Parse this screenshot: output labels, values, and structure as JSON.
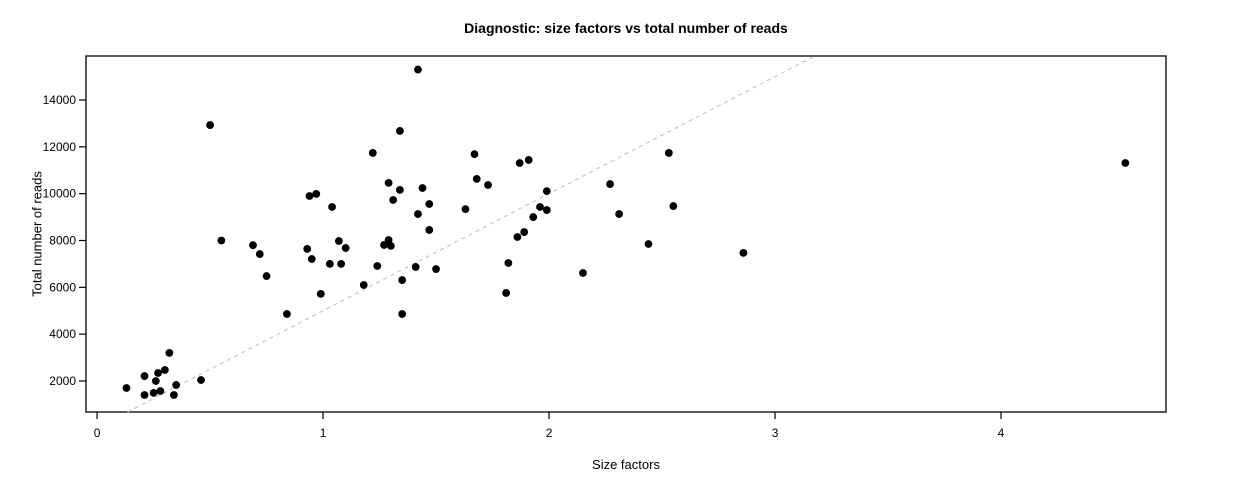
{
  "chart_data": {
    "type": "scatter",
    "title": "Diagnostic: size factors vs total number of reads",
    "xlabel": "Size factors",
    "ylabel": "Total number of reads",
    "x_ticks": [
      0,
      1,
      2,
      3,
      4
    ],
    "y_ticks": [
      2000,
      4000,
      6000,
      8000,
      10000,
      12000,
      14000
    ],
    "xlim": [
      -0.049,
      4.73
    ],
    "ylim": [
      675,
      15880
    ],
    "grid": false,
    "legend": null,
    "point_color": "#000000",
    "axis_color": "#000000",
    "trend_line": {
      "style": "dashed",
      "color": "#c6c6c6",
      "slope": 5000,
      "intercept": 0
    },
    "points": [
      [
        0.13,
        1700
      ],
      [
        0.21,
        2210
      ],
      [
        0.21,
        1400
      ],
      [
        0.25,
        1490
      ],
      [
        0.26,
        2000
      ],
      [
        0.27,
        2340
      ],
      [
        0.28,
        1570
      ],
      [
        0.3,
        2470
      ],
      [
        0.32,
        3200
      ],
      [
        0.34,
        1400
      ],
      [
        0.35,
        1830
      ],
      [
        0.46,
        2040
      ],
      [
        0.5,
        12930
      ],
      [
        0.55,
        8000
      ],
      [
        0.69,
        7800
      ],
      [
        0.72,
        7420
      ],
      [
        0.75,
        6480
      ],
      [
        0.84,
        4860
      ],
      [
        0.93,
        7640
      ],
      [
        0.94,
        9900
      ],
      [
        0.95,
        7210
      ],
      [
        0.97,
        9990
      ],
      [
        0.99,
        5720
      ],
      [
        1.03,
        7000
      ],
      [
        1.04,
        9430
      ],
      [
        1.07,
        7980
      ],
      [
        1.08,
        7000
      ],
      [
        1.1,
        7680
      ],
      [
        1.18,
        6100
      ],
      [
        1.22,
        11740
      ],
      [
        1.24,
        6910
      ],
      [
        1.27,
        7810
      ],
      [
        1.29,
        8020
      ],
      [
        1.29,
        10460
      ],
      [
        1.3,
        7770
      ],
      [
        1.31,
        9730
      ],
      [
        1.34,
        12680
      ],
      [
        1.34,
        10160
      ],
      [
        1.35,
        6310
      ],
      [
        1.35,
        4860
      ],
      [
        1.41,
        6870
      ],
      [
        1.42,
        15300
      ],
      [
        1.42,
        9130
      ],
      [
        1.44,
        10240
      ],
      [
        1.47,
        9560
      ],
      [
        1.47,
        8450
      ],
      [
        1.5,
        6780
      ],
      [
        1.63,
        9340
      ],
      [
        1.67,
        11690
      ],
      [
        1.68,
        10630
      ],
      [
        1.73,
        10370
      ],
      [
        1.81,
        5760
      ],
      [
        1.82,
        7040
      ],
      [
        1.86,
        8150
      ],
      [
        1.87,
        11310
      ],
      [
        1.89,
        8360
      ],
      [
        1.91,
        11440
      ],
      [
        1.93,
        9000
      ],
      [
        1.96,
        9430
      ],
      [
        1.99,
        10110
      ],
      [
        1.99,
        9300
      ],
      [
        2.15,
        6610
      ],
      [
        2.27,
        10410
      ],
      [
        2.31,
        9130
      ],
      [
        2.44,
        7850
      ],
      [
        2.53,
        11740
      ],
      [
        2.55,
        9470
      ],
      [
        2.86,
        7470
      ],
      [
        4.55,
        11310
      ]
    ]
  }
}
